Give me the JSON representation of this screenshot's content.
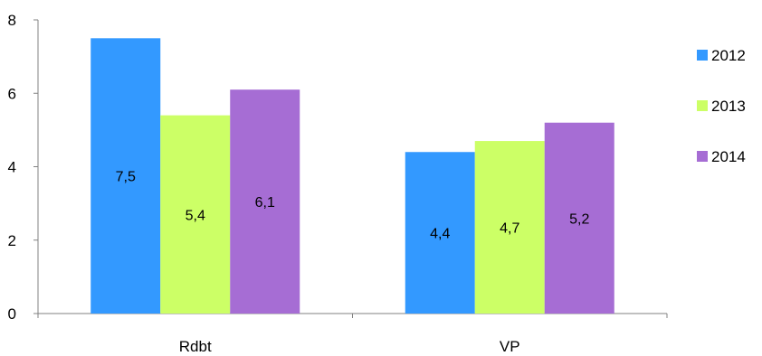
{
  "chart_data": {
    "type": "bar",
    "title": "",
    "xlabel": "",
    "ylabel": "",
    "categories": [
      "Rdbt",
      "VP"
    ],
    "series": [
      {
        "name": "2012",
        "values": [
          7.5,
          4.4
        ],
        "labels": [
          "7,5",
          "4,4"
        ],
        "color": "#3399FF"
      },
      {
        "name": "2013",
        "values": [
          5.4,
          4.7
        ],
        "labels": [
          "5,4",
          "4,7"
        ],
        "color": "#CCFF66"
      },
      {
        "name": "2014",
        "values": [
          6.1,
          5.2
        ],
        "labels": [
          "6,1",
          "5,2"
        ],
        "color": "#A66DD4"
      }
    ],
    "ylim": [
      0,
      8
    ],
    "yticks": [
      0,
      2,
      4,
      6,
      8
    ],
    "ytick_labels": [
      "0",
      "2",
      "4",
      "6",
      "8"
    ],
    "grid": false,
    "legend_position": "right"
  }
}
